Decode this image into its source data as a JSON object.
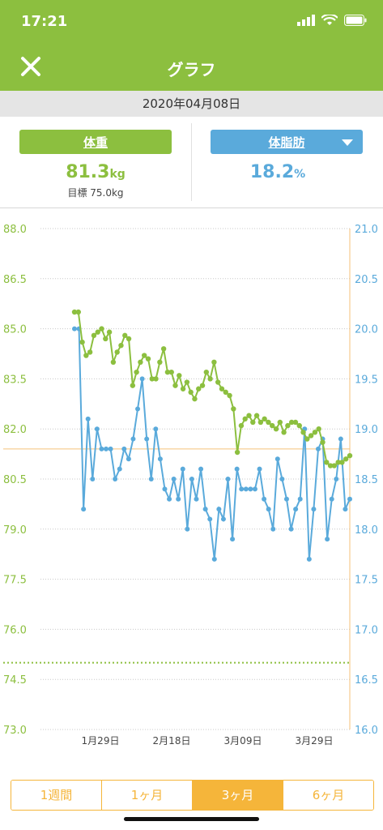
{
  "status_bar": {
    "time": "17:21"
  },
  "header": {
    "title": "グラフ",
    "close_icon": "close-icon"
  },
  "date": "2020年04月08日",
  "metrics": {
    "weight": {
      "label": "体重",
      "value": "81.3",
      "unit": "kg",
      "goal": "目標 75.0kg"
    },
    "fat": {
      "label": "体脂肪",
      "value": "18.2",
      "unit": "%"
    }
  },
  "tabs": [
    {
      "label": "1週間",
      "active": false
    },
    {
      "label": "1ヶ月",
      "active": false
    },
    {
      "label": "3ヶ月",
      "active": true
    },
    {
      "label": "6ヶ月",
      "active": false
    }
  ],
  "colors": {
    "green": "#8cbf3f",
    "blue": "#5aaadb",
    "orange": "#f5b53a"
  },
  "chart_data": {
    "type": "line",
    "left_axis": {
      "ticks": [
        "88.0",
        "86.5",
        "85.0",
        "83.5",
        "82.0",
        "80.5",
        "79.0",
        "77.5",
        "76.0",
        "74.5",
        "73.0"
      ],
      "ylim": [
        73.0,
        88.0
      ]
    },
    "right_axis": {
      "ticks": [
        "21.0",
        "20.5",
        "20.0",
        "19.5",
        "19.0",
        "18.5",
        "18.0",
        "17.5",
        "17.0",
        "16.5",
        "16.0"
      ],
      "ylim": [
        16.0,
        21.0
      ]
    },
    "x_ticks": [
      "1月29日",
      "2月18日",
      "3月09日",
      "3月29日"
    ],
    "goal_weight": 75.0,
    "current_fat_line": 18.8,
    "series": [
      {
        "name": "体重",
        "axis": "left",
        "values": [
          85.5,
          85.5,
          84.6,
          84.2,
          84.3,
          84.8,
          84.9,
          85.0,
          84.7,
          84.9,
          84.0,
          84.3,
          84.5,
          84.8,
          84.7,
          83.3,
          83.7,
          84.0,
          84.2,
          84.1,
          83.5,
          83.5,
          84.0,
          84.4,
          83.7,
          83.7,
          83.3,
          83.6,
          83.2,
          83.4,
          83.1,
          82.9,
          83.2,
          83.3,
          83.7,
          83.5,
          84.0,
          83.4,
          83.2,
          83.1,
          83.0,
          82.6,
          81.3,
          82.1,
          82.3,
          82.4,
          82.2,
          82.4,
          82.2,
          82.3,
          82.2,
          82.1,
          82.0,
          82.2,
          81.9,
          82.1,
          82.2,
          82.2,
          82.1,
          81.9,
          81.7,
          81.8,
          81.9,
          82.0,
          81.6,
          81.0,
          80.9,
          80.9,
          81.0,
          81.0,
          81.1,
          81.2
        ]
      },
      {
        "name": "体脂肪",
        "axis": "right",
        "values": [
          20.0,
          20.0,
          18.2,
          19.1,
          18.5,
          19.0,
          18.8,
          18.8,
          18.8,
          18.5,
          18.6,
          18.8,
          18.7,
          18.9,
          19.2,
          19.5,
          18.9,
          18.5,
          19.0,
          18.7,
          18.4,
          18.3,
          18.5,
          18.3,
          18.6,
          18.0,
          18.5,
          18.3,
          18.6,
          18.2,
          18.1,
          17.7,
          18.2,
          18.1,
          18.5,
          17.9,
          18.6,
          18.4,
          18.4,
          18.4,
          18.4,
          18.6,
          18.3,
          18.2,
          18.0,
          18.7,
          18.5,
          18.3,
          18.0,
          18.2,
          18.3,
          19.0,
          17.7,
          18.2,
          18.8,
          18.9,
          17.9,
          18.3,
          18.5,
          18.9,
          18.2,
          18.3
        ]
      }
    ]
  }
}
